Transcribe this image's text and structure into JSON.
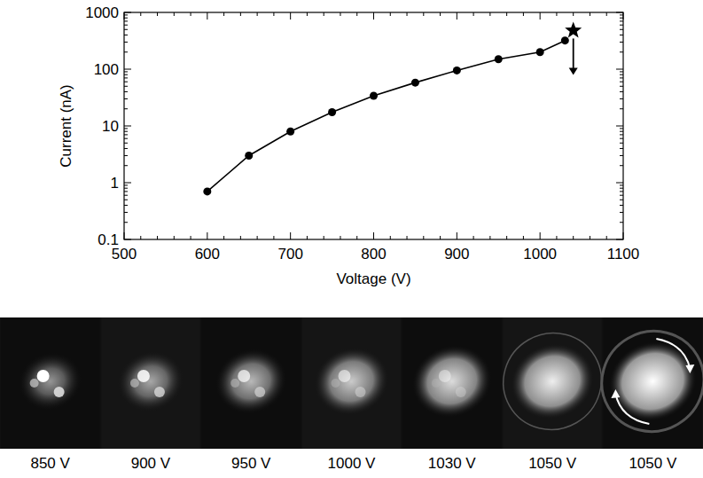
{
  "chart_data": {
    "type": "line",
    "x_label": "Voltage (V)",
    "y_label": "Current (nA)",
    "log": "y",
    "xlim": [
      500,
      1100
    ],
    "xticks": [
      500,
      600,
      700,
      800,
      900,
      1000,
      1100
    ],
    "ylim": [
      0.1,
      1000
    ],
    "yticks": [
      0.1,
      1,
      10,
      100,
      1000
    ],
    "grid": false,
    "series": [
      {
        "x": [
          600,
          650,
          700,
          750,
          800,
          850,
          900,
          950,
          1000,
          1030
        ],
        "values": [
          0.7,
          3,
          8,
          17.5,
          34,
          58,
          95,
          150,
          200,
          320
        ],
        "marker": "circle",
        "line_style": "solid",
        "color": "#000000"
      },
      {
        "x": [
          1040
        ],
        "values": [
          480
        ],
        "marker": "star",
        "line_style": "none",
        "color": "#000000"
      }
    ]
  },
  "images": {
    "labels": [
      "850 V",
      "900 V",
      "950 V",
      "1000 V",
      "1030 V",
      "1050 V",
      "1050 V"
    ]
  }
}
